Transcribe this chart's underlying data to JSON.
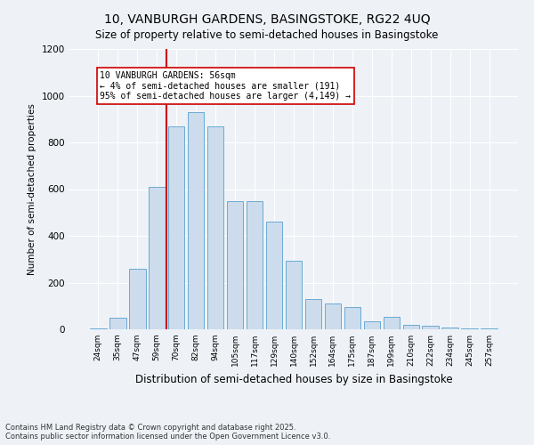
{
  "title1": "10, VANBURGH GARDENS, BASINGSTOKE, RG22 4UQ",
  "title2": "Size of property relative to semi-detached houses in Basingstoke",
  "xlabel": "Distribution of semi-detached houses by size in Basingstoke",
  "ylabel": "Number of semi-detached properties",
  "categories": [
    "24sqm",
    "35sqm",
    "47sqm",
    "59sqm",
    "70sqm",
    "82sqm",
    "94sqm",
    "105sqm",
    "117sqm",
    "129sqm",
    "140sqm",
    "152sqm",
    "164sqm",
    "175sqm",
    "187sqm",
    "199sqm",
    "210sqm",
    "222sqm",
    "234sqm",
    "245sqm",
    "257sqm"
  ],
  "values": [
    5,
    50,
    260,
    610,
    870,
    930,
    870,
    550,
    550,
    460,
    295,
    130,
    110,
    95,
    35,
    55,
    20,
    15,
    8,
    5,
    2
  ],
  "bar_color": "#ccdcec",
  "bar_edge_color": "#6aaad4",
  "vline_x": 3.5,
  "vline_color": "#cc0000",
  "annotation_title": "10 VANBURGH GARDENS: 56sqm",
  "annotation_line1": "← 4% of semi-detached houses are smaller (191)",
  "annotation_line2": "95% of semi-detached houses are larger (4,149) →",
  "annotation_box_color": "#ffffff",
  "annotation_box_edge": "#cc0000",
  "ylim": [
    0,
    1200
  ],
  "yticks": [
    0,
    200,
    400,
    600,
    800,
    1000,
    1200
  ],
  "footer1": "Contains HM Land Registry data © Crown copyright and database right 2025.",
  "footer2": "Contains public sector information licensed under the Open Government Licence v3.0.",
  "bg_color": "#eef2f7",
  "plot_bg_color": "#eef2f7",
  "grid_color": "#ffffff"
}
